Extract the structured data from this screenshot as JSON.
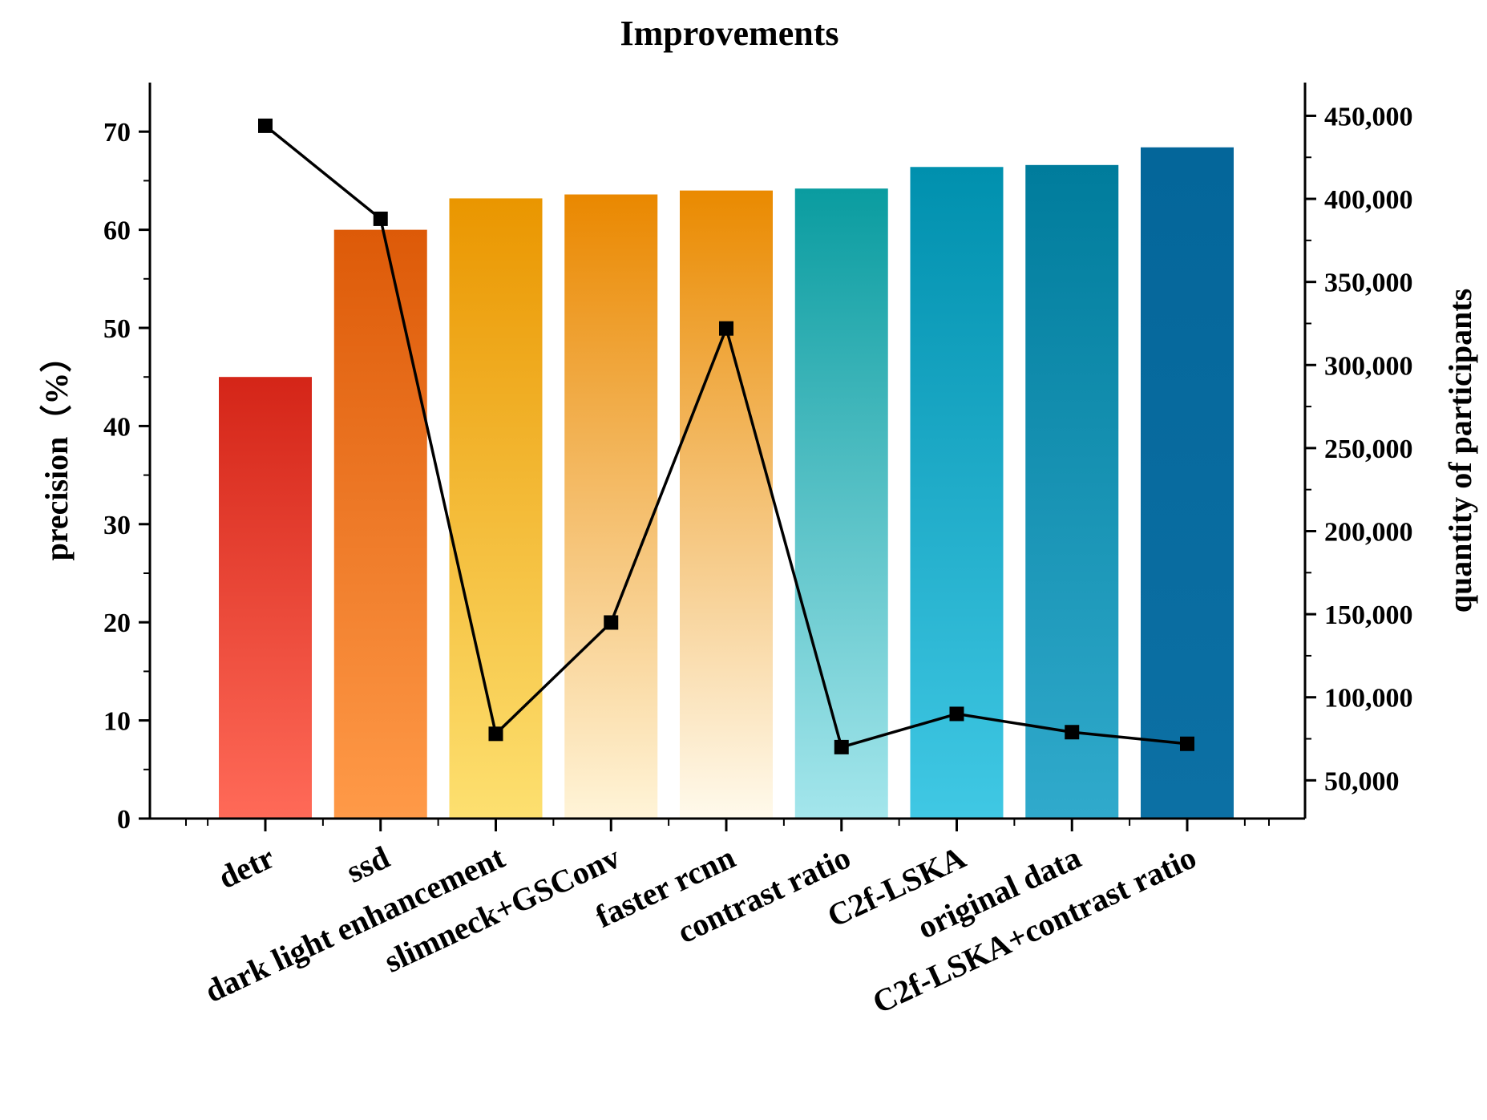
{
  "chart_data": {
    "type": "bar",
    "title": "Improvements",
    "categories": [
      "detr",
      "ssd",
      "dark light enhancement",
      "slimneck+GSConv",
      "faster rcnn",
      "contrast ratio",
      "C2f-LSKA",
      "original data",
      "C2f-LSKA+contrast ratio"
    ],
    "series": [
      {
        "name": "precision",
        "kind": "bar",
        "axis": "left",
        "values": [
          45.0,
          60.0,
          63.2,
          63.6,
          64.0,
          64.2,
          66.4,
          66.6,
          68.4
        ]
      },
      {
        "name": "quantity of participants",
        "kind": "line",
        "axis": "right",
        "marker": "square",
        "values": [
          444000,
          388000,
          78000,
          145000,
          322000,
          70000,
          90000,
          79000,
          72000
        ]
      }
    ],
    "ylabel": "precision（%）",
    "ylim": [
      0,
      75
    ],
    "yticks": [
      0,
      10,
      20,
      30,
      40,
      50,
      60,
      70
    ],
    "y2label": "quantity of participants",
    "y2lim": [
      27000,
      470000
    ],
    "y2ticks": [
      50000,
      100000,
      150000,
      200000,
      250000,
      300000,
      350000,
      400000,
      450000
    ],
    "y2tick_labels": [
      "50,000",
      "100,000",
      "150,000",
      "200,000",
      "250,000",
      "300,000",
      "350,000",
      "400,000",
      "450,000"
    ],
    "xlabel": "",
    "grid": false,
    "bar_gradients": [
      [
        "#d42518",
        "#ff6a58"
      ],
      [
        "#dd5a08",
        "#ff9a48"
      ],
      [
        "#ea9600",
        "#fde070"
      ],
      [
        "#ea8800",
        "#fff4d8"
      ],
      [
        "#ea8a00",
        "#fffaec"
      ],
      [
        "#0a9ca0",
        "#a4e6ec"
      ],
      [
        "#0090ae",
        "#40c8e4"
      ],
      [
        "#007c9c",
        "#30aacc"
      ],
      [
        "#04669a",
        "#0c70a4"
      ]
    ],
    "line_color": "#000000"
  }
}
